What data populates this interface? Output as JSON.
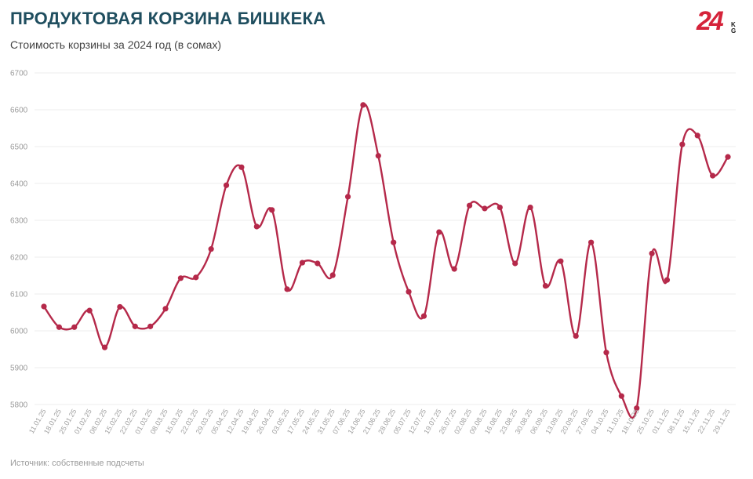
{
  "header": {
    "title": "ПРОДУКТОВАЯ КОРЗИНА БИШКЕКА",
    "subtitle": "Стоимость корзины за 2024 год (в сомах)"
  },
  "logo": {
    "number": "24",
    "suffix": "KG"
  },
  "footer": {
    "source": "Источник: собственные подсчеты"
  },
  "colors": {
    "line": "#b5294a",
    "title": "#1f4e5f",
    "grid": "#ececec"
  },
  "chart_data": {
    "type": "line",
    "title": "ПРОДУКТОВАЯ КОРЗИНА БИШКЕКА",
    "subtitle": "Стоимость корзины за 2024 год (в сомах)",
    "xlabel": "",
    "ylabel": "",
    "ylim": [
      5800,
      6700
    ],
    "yticks": [
      5800,
      5900,
      6000,
      6100,
      6200,
      6300,
      6400,
      6500,
      6600,
      6700
    ],
    "grid": true,
    "legend": "none",
    "categories": [
      "11.01.25",
      "18.01.25",
      "25.01.25",
      "01.02.25",
      "08.02.25",
      "15.02.25",
      "22.02.25",
      "01.03.25",
      "08.03.25",
      "15.03.25",
      "22.03.25",
      "29.03.25",
      "05.04.25",
      "12.04.25",
      "19.04.25",
      "26.04.25",
      "03.05.25",
      "17.05.25",
      "24.05.25",
      "31.05.25",
      "07.06.25",
      "14.06.25",
      "21.06.25",
      "28.06.25",
      "05.07.25",
      "12.07.25",
      "19.07.25",
      "26.07.25",
      "02.08.25",
      "09.08.25",
      "16.08.25",
      "23.08.25",
      "30.08.25",
      "06.09.25",
      "13.09.25",
      "20.09.25",
      "27.09.25",
      "04.10.25",
      "11.10.25",
      "18.10.25",
      "25.10.25",
      "01.11.25",
      "08.11.25",
      "15.11.25",
      "22.11.25",
      "29.11.25"
    ],
    "series": [
      {
        "values": [
          6066,
          6010,
          6010,
          6055,
          5955,
          6065,
          6012,
          6012,
          6060,
          6143,
          6145,
          6222,
          6395,
          6444,
          6283,
          6328,
          6113,
          6185,
          6183,
          6151,
          6364,
          6613,
          6475,
          6240,
          6106,
          6040,
          6268,
          6168,
          6340,
          6332,
          6335,
          6183,
          6335,
          6122,
          6189,
          5986,
          6240,
          5941,
          5823,
          5790,
          6210,
          6138,
          6506,
          6530,
          6421,
          6472
        ]
      }
    ]
  }
}
